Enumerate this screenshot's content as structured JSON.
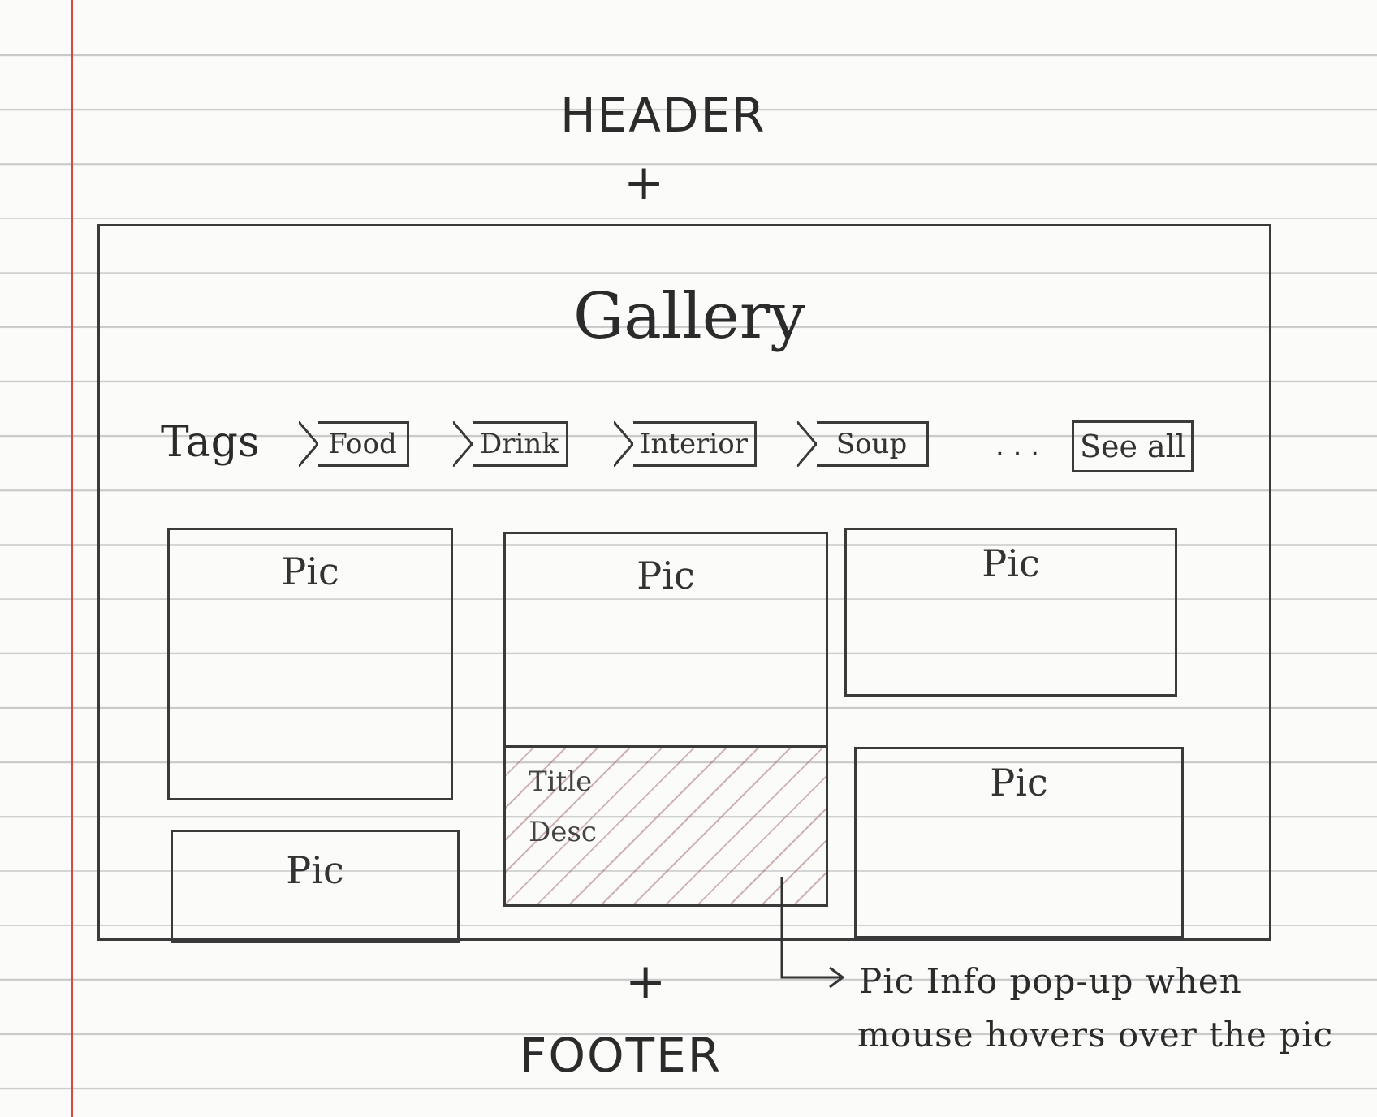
{
  "header": {
    "label": "HEADER",
    "plus": "+"
  },
  "gallery": {
    "title": "Gallery",
    "tags": {
      "label": "Tags",
      "items": [
        "Food",
        "Drink",
        "Interior",
        "Soup"
      ],
      "ellipsis": ". . .",
      "see_all_label": "See all"
    },
    "pics": [
      "Pic",
      "Pic",
      "Pic",
      "Pic",
      "Pic"
    ],
    "hover_overlay": {
      "title": "Title",
      "desc": "Desc"
    }
  },
  "footer": {
    "label": "FOOTER",
    "plus": "+"
  },
  "annotation": {
    "line1": "Pic Info pop-up when",
    "line2": "mouse hovers over the pic"
  }
}
